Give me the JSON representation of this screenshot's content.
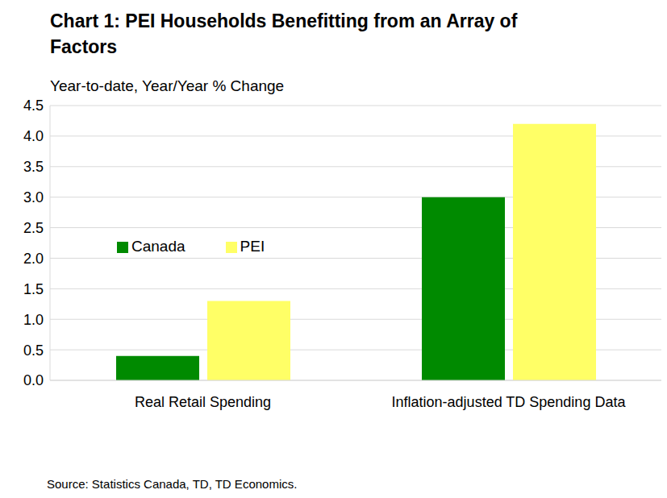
{
  "chart_data": {
    "type": "bar",
    "title": "Chart 1: PEI Households Benefitting from an Array of Factors",
    "subtitle": "Year-to-date, Year/Year % Change",
    "source": "Source: Statistics Canada, TD, TD Economics.",
    "categories": [
      "Real Retail Spending",
      "Inflation-adjusted TD Spending Data"
    ],
    "series": [
      {
        "name": "Canada",
        "color": "#008a00",
        "values": [
          0.4,
          3.0
        ]
      },
      {
        "name": "PEI",
        "color": "#ffff66",
        "values": [
          1.3,
          4.2
        ]
      }
    ],
    "ylim": [
      0,
      4.5
    ],
    "yticks": [
      {
        "value": 0,
        "label": "0.0"
      },
      0.5,
      {
        "value": 1,
        "label": "1.0"
      },
      1.5,
      {
        "value": 2,
        "label": "2.0"
      },
      2.5,
      {
        "value": 3,
        "label": "3.0"
      },
      3.5,
      {
        "value": 4,
        "label": "4.0"
      },
      4.5
    ],
    "grid": true,
    "legend": "left"
  }
}
